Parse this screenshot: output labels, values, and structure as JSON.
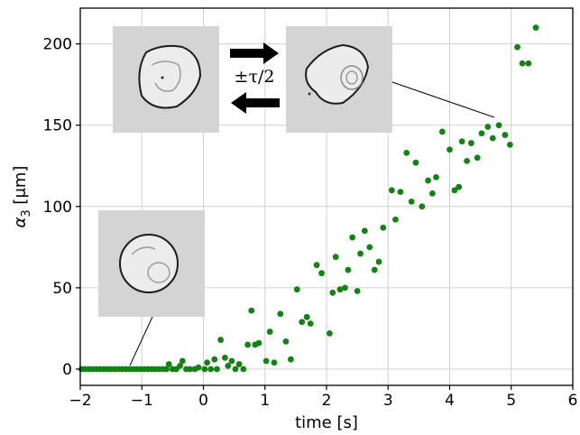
{
  "chart_data": {
    "type": "scatter",
    "xlabel": "time [s]",
    "ylabel_parts": {
      "symbol": "α",
      "subscript": "3",
      "unit": " [μm]"
    },
    "xlim": [
      -2,
      6
    ],
    "ylim": [
      -10,
      222
    ],
    "xticks": [
      -2,
      -1,
      0,
      1,
      2,
      3,
      4,
      5,
      6
    ],
    "yticks": [
      0,
      50,
      100,
      150,
      200
    ],
    "xtick_labels": [
      "−2",
      "−1",
      "0",
      "1",
      "2",
      "3",
      "4",
      "5",
      "6"
    ],
    "ytick_labels": [
      "0",
      "50",
      "100",
      "150",
      "200"
    ],
    "grid": true,
    "annotation": "±τ/2",
    "colors": {
      "points": "#128212",
      "grid": "#d0d0d0",
      "axes": "#000000",
      "arrows": "#000000"
    },
    "series": [
      {
        "color": "#128212",
        "points": [
          [
            -1.98,
            0
          ],
          [
            -1.92,
            0
          ],
          [
            -1.86,
            0
          ],
          [
            -1.8,
            0
          ],
          [
            -1.74,
            0
          ],
          [
            -1.68,
            0
          ],
          [
            -1.62,
            0
          ],
          [
            -1.56,
            0
          ],
          [
            -1.5,
            0
          ],
          [
            -1.44,
            0
          ],
          [
            -1.38,
            0
          ],
          [
            -1.32,
            0
          ],
          [
            -1.26,
            0
          ],
          [
            -1.2,
            0
          ],
          [
            -1.14,
            0
          ],
          [
            -1.08,
            0
          ],
          [
            -1.02,
            0
          ],
          [
            -0.96,
            0
          ],
          [
            -0.9,
            0
          ],
          [
            -0.84,
            0
          ],
          [
            -0.78,
            0
          ],
          [
            -0.72,
            0
          ],
          [
            -0.66,
            0
          ],
          [
            -0.6,
            0
          ],
          [
            -0.56,
            3
          ],
          [
            -0.5,
            0
          ],
          [
            -0.44,
            0
          ],
          [
            -0.38,
            2
          ],
          [
            -0.34,
            5
          ],
          [
            -0.28,
            0
          ],
          [
            -0.22,
            0
          ],
          [
            -0.14,
            0
          ],
          [
            -0.08,
            1
          ],
          [
            0.02,
            0
          ],
          [
            0.06,
            4
          ],
          [
            0.12,
            0
          ],
          [
            0.18,
            6
          ],
          [
            0.22,
            0
          ],
          [
            0.28,
            18
          ],
          [
            0.35,
            7
          ],
          [
            0.4,
            2
          ],
          [
            0.46,
            5
          ],
          [
            0.52,
            0
          ],
          [
            0.58,
            3
          ],
          [
            0.65,
            0
          ],
          [
            0.72,
            15
          ],
          [
            0.78,
            36
          ],
          [
            0.84,
            15
          ],
          [
            0.9,
            16
          ],
          [
            1.02,
            5
          ],
          [
            1.08,
            23
          ],
          [
            1.15,
            4
          ],
          [
            1.25,
            34
          ],
          [
            1.34,
            17
          ],
          [
            1.42,
            6
          ],
          [
            1.52,
            49
          ],
          [
            1.6,
            29
          ],
          [
            1.68,
            32
          ],
          [
            1.74,
            28
          ],
          [
            1.84,
            64
          ],
          [
            1.92,
            59
          ],
          [
            2.05,
            22
          ],
          [
            2.1,
            47
          ],
          [
            2.15,
            69
          ],
          [
            2.22,
            49
          ],
          [
            2.3,
            50
          ],
          [
            2.35,
            61
          ],
          [
            2.42,
            81
          ],
          [
            2.5,
            48
          ],
          [
            2.55,
            71
          ],
          [
            2.62,
            85
          ],
          [
            2.7,
            75
          ],
          [
            2.78,
            61
          ],
          [
            2.85,
            66
          ],
          [
            2.92,
            87
          ],
          [
            3.06,
            110
          ],
          [
            3.12,
            92
          ],
          [
            3.2,
            109
          ],
          [
            3.3,
            133
          ],
          [
            3.38,
            103
          ],
          [
            3.45,
            127
          ],
          [
            3.55,
            100
          ],
          [
            3.65,
            116
          ],
          [
            3.72,
            108
          ],
          [
            3.78,
            118
          ],
          [
            3.88,
            146
          ],
          [
            4.0,
            135
          ],
          [
            4.08,
            110
          ],
          [
            4.15,
            112
          ],
          [
            4.2,
            140
          ],
          [
            4.28,
            128
          ],
          [
            4.35,
            139
          ],
          [
            4.45,
            130
          ],
          [
            4.52,
            145
          ],
          [
            4.62,
            149
          ],
          [
            4.7,
            142
          ],
          [
            4.8,
            150
          ],
          [
            4.9,
            144
          ],
          [
            4.98,
            138
          ],
          [
            5.1,
            198
          ],
          [
            5.18,
            188
          ],
          [
            5.28,
            188
          ],
          [
            5.4,
            210
          ]
        ]
      }
    ]
  }
}
